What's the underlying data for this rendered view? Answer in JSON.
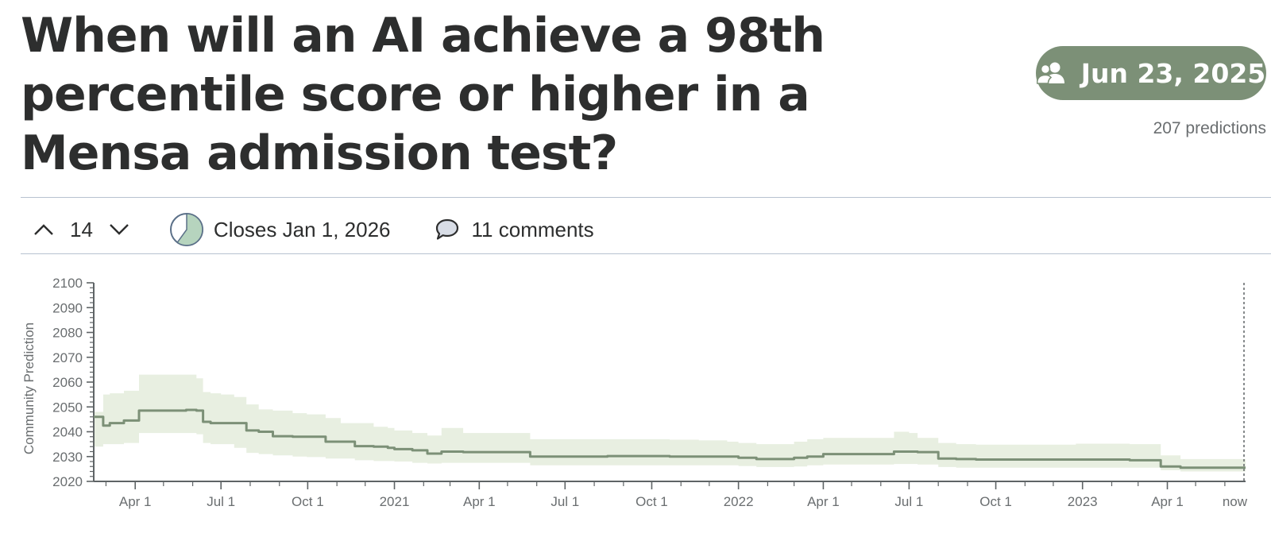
{
  "question": {
    "title": "When will an AI achieve a 98th percentile score or higher in a Mensa admission test?"
  },
  "forecast_pill": {
    "icon": "users-icon",
    "label": "Jun 23, 2025",
    "color": "#7c9077"
  },
  "predictions_label": "207 predictions",
  "meta": {
    "vote_count": "14",
    "closes_label": "Closes Jan 1, 2026",
    "closes_progress": 0.6,
    "comments_label": "11 comments"
  },
  "chart_data": {
    "type": "area",
    "ylabel": "Community Prediction",
    "ylim": [
      2020,
      2100
    ],
    "y_ticks_major": [
      2020,
      2030,
      2040,
      2050,
      2060,
      2070,
      2080,
      2090,
      2100
    ],
    "xlim": [
      "2020-02-17",
      "2023-06-23"
    ],
    "x_ticks": [
      {
        "date": "2020-04-01",
        "label": "Apr 1"
      },
      {
        "date": "2020-07-01",
        "label": "Jul 1"
      },
      {
        "date": "2020-10-01",
        "label": "Oct 1"
      },
      {
        "date": "2021-01-01",
        "label": "2021"
      },
      {
        "date": "2021-04-01",
        "label": "Apr 1"
      },
      {
        "date": "2021-07-01",
        "label": "Jul 1"
      },
      {
        "date": "2021-10-01",
        "label": "Oct 1"
      },
      {
        "date": "2022-01-01",
        "label": "2022"
      },
      {
        "date": "2022-04-01",
        "label": "Apr 1"
      },
      {
        "date": "2022-07-01",
        "label": "Jul 1"
      },
      {
        "date": "2022-10-01",
        "label": "Oct 1"
      },
      {
        "date": "2023-01-01",
        "label": "2023"
      },
      {
        "date": "2023-04-01",
        "label": "Apr 1"
      },
      {
        "date": "2023-06-23",
        "label": "now"
      }
    ],
    "now_marker": "2023-06-23",
    "line_color": "#7c9077",
    "band_color": "#e8efe1",
    "series": [
      {
        "x": [
          "2020-02-17",
          "2020-02-27",
          "2020-03-05",
          "2020-03-20",
          "2020-04-05",
          "2020-04-25",
          "2020-05-25",
          "2020-06-05",
          "2020-06-12",
          "2020-06-20",
          "2020-07-01",
          "2020-07-15",
          "2020-07-28",
          "2020-08-10",
          "2020-08-25",
          "2020-09-15",
          "2020-09-30",
          "2020-10-20",
          "2020-11-05",
          "2020-11-20",
          "2020-12-10",
          "2020-12-25",
          "2021-01-01",
          "2021-01-20",
          "2021-02-05",
          "2021-02-20",
          "2021-03-15",
          "2021-04-20",
          "2021-05-15",
          "2021-05-25",
          "2021-06-20",
          "2021-07-20",
          "2021-08-15",
          "2021-09-20",
          "2021-10-20",
          "2021-11-20",
          "2021-12-20",
          "2022-01-01",
          "2022-01-20",
          "2022-02-20",
          "2022-03-01",
          "2022-03-15",
          "2022-04-01",
          "2022-04-20",
          "2022-05-10",
          "2022-05-25",
          "2022-06-15",
          "2022-07-01",
          "2022-07-10",
          "2022-08-01",
          "2022-08-20",
          "2022-09-10",
          "2022-10-01",
          "2022-11-01",
          "2022-12-10",
          "2022-12-25",
          "2023-01-10",
          "2023-02-01",
          "2023-02-20",
          "2023-03-05",
          "2023-03-25",
          "2023-04-15",
          "2023-05-15",
          "2023-06-10",
          "2023-06-23"
        ],
        "median": [
          2046.0,
          2042.5,
          2043.5,
          2044.5,
          2048.5,
          2048.5,
          2048.8,
          2048.5,
          2044.0,
          2043.5,
          2043.5,
          2043.5,
          2040.5,
          2040.0,
          2038.2,
          2038.0,
          2038.0,
          2036.0,
          2036.0,
          2034.2,
          2034.0,
          2033.5,
          2033.0,
          2032.5,
          2031.2,
          2032.0,
          2031.8,
          2031.8,
          2031.8,
          2030.0,
          2030.0,
          2030.0,
          2030.2,
          2030.2,
          2030.0,
          2030.0,
          2030.0,
          2029.5,
          2029.0,
          2029.0,
          2029.5,
          2030.0,
          2031.0,
          2031.0,
          2031.0,
          2031.0,
          2032.0,
          2032.0,
          2031.8,
          2029.2,
          2029.0,
          2028.8,
          2028.8,
          2028.8,
          2028.8,
          2028.8,
          2028.8,
          2028.8,
          2028.5,
          2028.5,
          2026.0,
          2025.5,
          2025.5,
          2025.5,
          2025.5
        ],
        "lower": [
          2034.0,
          2035.0,
          2035.0,
          2035.5,
          2039.5,
          2039.5,
          2039.5,
          2039.0,
          2035.5,
          2035.0,
          2035.0,
          2033.5,
          2031.5,
          2031.0,
          2030.5,
          2030.0,
          2029.8,
          2029.2,
          2029.2,
          2028.5,
          2028.2,
          2028.2,
          2028.0,
          2027.5,
          2027.2,
          2027.5,
          2027.5,
          2027.5,
          2027.5,
          2026.5,
          2026.5,
          2026.5,
          2026.5,
          2026.5,
          2026.5,
          2026.5,
          2026.5,
          2026.2,
          2025.8,
          2025.8,
          2026.0,
          2026.5,
          2026.8,
          2026.8,
          2026.8,
          2026.8,
          2027.0,
          2027.0,
          2026.8,
          2025.8,
          2025.5,
          2025.5,
          2025.5,
          2025.5,
          2025.5,
          2025.5,
          2025.5,
          2025.5,
          2025.5,
          2025.5,
          2024.5,
          2024.0,
          2024.0,
          2024.0,
          2024.0
        ],
        "upper": [
          2048.0,
          2055.0,
          2055.5,
          2056.5,
          2063.0,
          2063.0,
          2063.0,
          2061.5,
          2056.0,
          2055.5,
          2055.0,
          2054.0,
          2051.0,
          2049.0,
          2048.5,
          2047.5,
          2047.0,
          2045.5,
          2043.5,
          2043.5,
          2042.0,
          2041.5,
          2040.5,
          2039.5,
          2038.5,
          2041.5,
          2039.5,
          2039.5,
          2039.5,
          2037.0,
          2037.0,
          2037.0,
          2037.0,
          2037.0,
          2036.8,
          2036.5,
          2036.0,
          2035.5,
          2035.0,
          2035.0,
          2036.0,
          2037.0,
          2037.5,
          2037.5,
          2037.5,
          2037.5,
          2040.0,
          2039.5,
          2037.5,
          2035.5,
          2035.0,
          2034.8,
          2034.8,
          2034.8,
          2034.8,
          2035.2,
          2035.2,
          2035.2,
          2035.0,
          2035.0,
          2030.5,
          2029.0,
          2029.0,
          2029.0,
          2029.0
        ]
      }
    ]
  }
}
